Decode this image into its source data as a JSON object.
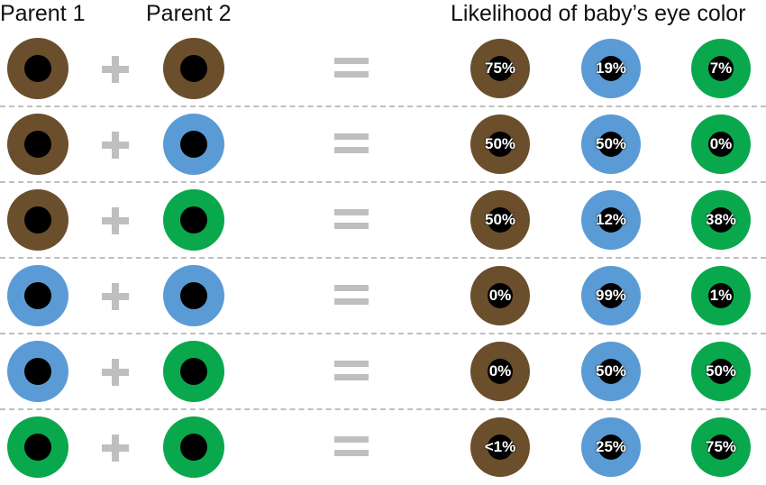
{
  "headers": {
    "parent1": "Parent 1",
    "parent2": "Parent 2",
    "likelihood": "Likelihood of baby’s eye color"
  },
  "colors": {
    "brown": "#6b4e2c",
    "blue": "#5b9bd5",
    "green": "#09a84d",
    "pupil": "#000000",
    "symbol": "#bfbfbf"
  },
  "rows": [
    {
      "parent1": "brown",
      "parent2": "brown",
      "brown": "75%",
      "blue": "19%",
      "green": "7%"
    },
    {
      "parent1": "brown",
      "parent2": "blue",
      "brown": "50%",
      "blue": "50%",
      "green": "0%"
    },
    {
      "parent1": "brown",
      "parent2": "green",
      "brown": "50%",
      "blue": "12%",
      "green": "38%"
    },
    {
      "parent1": "blue",
      "parent2": "blue",
      "brown": "0%",
      "blue": "99%",
      "green": "1%"
    },
    {
      "parent1": "blue",
      "parent2": "green",
      "brown": "0%",
      "blue": "50%",
      "green": "50%"
    },
    {
      "parent1": "green",
      "parent2": "green",
      "brown": "<1%",
      "blue": "25%",
      "green": "75%"
    }
  ]
}
